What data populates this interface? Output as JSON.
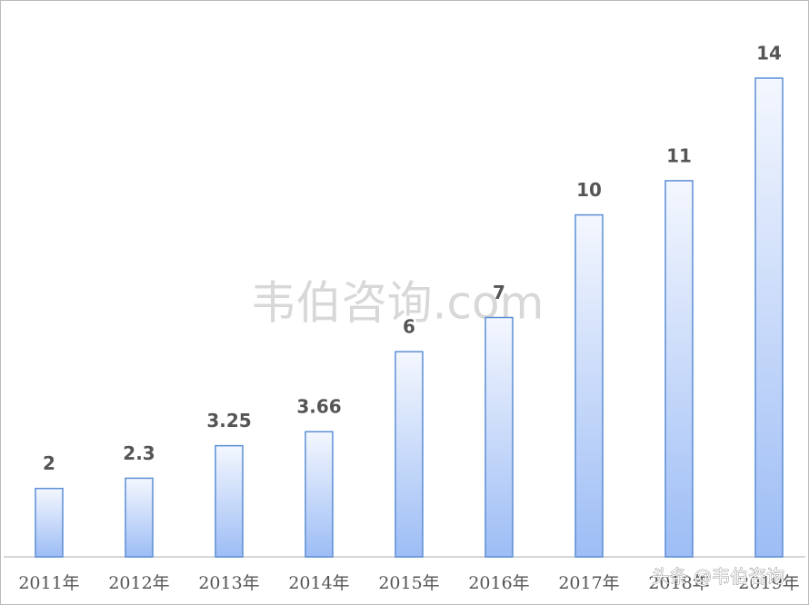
{
  "chart_data": {
    "type": "bar",
    "categories": [
      "2011年",
      "2012年",
      "2013年",
      "2014年",
      "2015年",
      "2016年",
      "2017年",
      "2018年",
      "2019年"
    ],
    "values": [
      2,
      2.3,
      3.25,
      3.66,
      6,
      7,
      10,
      11,
      14
    ],
    "color": "#9dbdf5",
    "annotations": [
      "韦伯咨询.com",
      "头条 @韦伯咨询"
    ]
  }
}
